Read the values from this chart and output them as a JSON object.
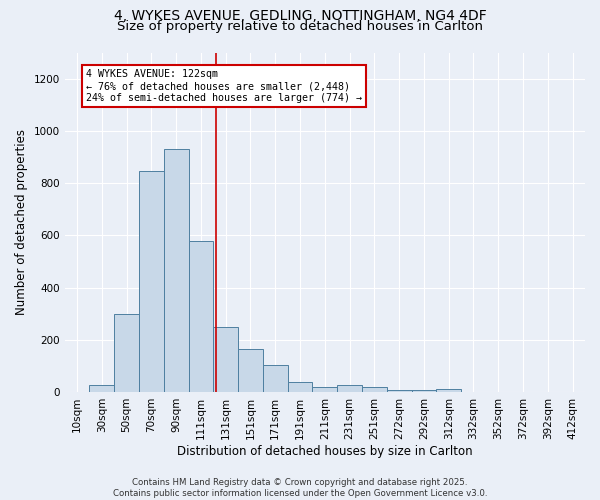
{
  "title1": "4, WYKES AVENUE, GEDLING, NOTTINGHAM, NG4 4DF",
  "title2": "Size of property relative to detached houses in Carlton",
  "xlabel": "Distribution of detached houses by size in Carlton",
  "ylabel": "Number of detached properties",
  "footer1": "Contains HM Land Registry data © Crown copyright and database right 2025.",
  "footer2": "Contains public sector information licensed under the Open Government Licence v3.0.",
  "bar_labels": [
    "10sqm",
    "30sqm",
    "50sqm",
    "70sqm",
    "90sqm",
    "111sqm",
    "131sqm",
    "151sqm",
    "171sqm",
    "191sqm",
    "211sqm",
    "231sqm",
    "251sqm",
    "272sqm",
    "292sqm",
    "312sqm",
    "332sqm",
    "352sqm",
    "372sqm",
    "392sqm",
    "412sqm"
  ],
  "bar_values": [
    0,
    25,
    300,
    845,
    930,
    580,
    248,
    165,
    105,
    38,
    18,
    25,
    18,
    8,
    9,
    10,
    0,
    0,
    0,
    0,
    0
  ],
  "bar_color": "#c8d8e8",
  "bar_edge_color": "#4e7fa0",
  "vline_x": 5.6,
  "vline_color": "#cc0000",
  "annotation_text": "4 WYKES AVENUE: 122sqm\n← 76% of detached houses are smaller (2,448)\n24% of semi-detached houses are larger (774) →",
  "ylim": [
    0,
    1300
  ],
  "yticks": [
    0,
    200,
    400,
    600,
    800,
    1000,
    1200
  ],
  "background_color": "#eaeff7",
  "grid_color": "#ffffff",
  "title1_fontsize": 10,
  "title2_fontsize": 9.5,
  "axis_fontsize": 8.5,
  "tick_fontsize": 7.5,
  "footer_fontsize": 6.2
}
